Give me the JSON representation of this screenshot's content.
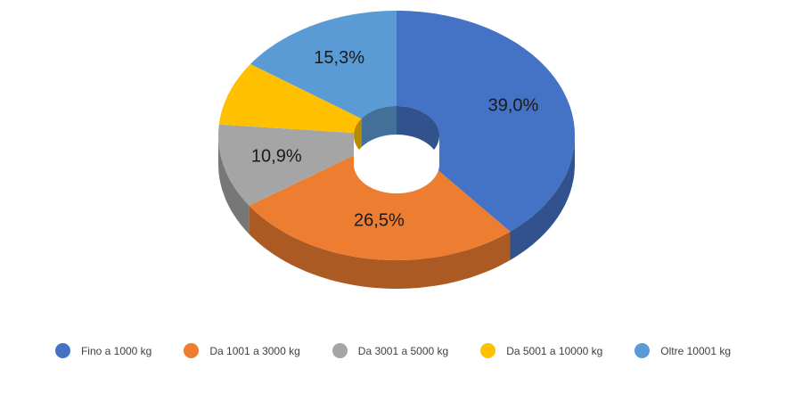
{
  "chart_data": {
    "type": "doughnut3d",
    "categories": [
      "Fino a 1000 kg",
      "Da 1001 a 3000 kg",
      "Da 3001 a 5000 kg",
      "Da 5001 a 10000 kg",
      "Oltre 10001 kg"
    ],
    "values": [
      39.0,
      26.5,
      10.9,
      8.3,
      15.3
    ],
    "value_labels": [
      "39,0%",
      "26,5%",
      "10,9%",
      null,
      "15,3%"
    ],
    "colors": [
      "#4472c4",
      "#ed7d31",
      "#a5a5a5",
      "#ffc000",
      "#5b9bd5"
    ],
    "legend": "bottom"
  }
}
